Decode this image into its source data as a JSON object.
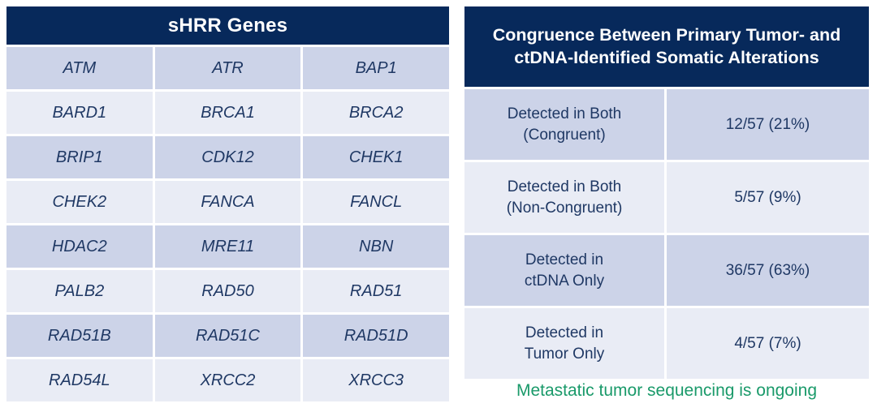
{
  "left_table": {
    "title": "sHRR Genes",
    "genes": [
      [
        "ATM",
        "ATR",
        "BAP1"
      ],
      [
        "BARD1",
        "BRCA1",
        "BRCA2"
      ],
      [
        "BRIP1",
        "CDK12",
        "CHEK1"
      ],
      [
        "CHEK2",
        "FANCA",
        "FANCL"
      ],
      [
        "HDAC2",
        "MRE11",
        "NBN"
      ],
      [
        "PALB2",
        "RAD50",
        "RAD51"
      ],
      [
        "RAD51B",
        "RAD51C",
        "RAD51D"
      ],
      [
        "RAD54L",
        "XRCC2",
        "XRCC3"
      ]
    ]
  },
  "right_table": {
    "title": "Congruence Between Primary Tumor- and\nctDNA-Identified Somatic Alterations",
    "rows": [
      {
        "label": "Detected in Both\n(Congruent)",
        "value": "12/57 (21%)"
      },
      {
        "label": "Detected in Both\n(Non-Congruent)",
        "value": "5/57 (9%)"
      },
      {
        "label": "Detected in\nctDNA Only",
        "value": "36/57 (63%)"
      },
      {
        "label": "Detected in\nTumor Only",
        "value": "4/57 (7%)"
      }
    ]
  },
  "footnote": "Metastatic tumor sequencing is ongoing",
  "colors": {
    "header_navy": "#07295b",
    "row_dark": "#ccd3e8",
    "row_light": "#e9ecf5",
    "text_navy": "#1f3864",
    "footnote_green": "#1a9a6a"
  }
}
